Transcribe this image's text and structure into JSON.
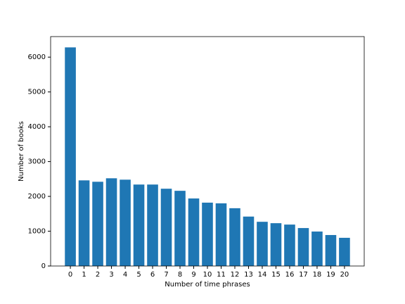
{
  "chart_data": {
    "type": "bar",
    "x": [
      0,
      1,
      2,
      3,
      4,
      5,
      6,
      7,
      8,
      9,
      10,
      11,
      12,
      13,
      14,
      15,
      16,
      17,
      18,
      19,
      20
    ],
    "values": [
      6280,
      2460,
      2420,
      2520,
      2480,
      2340,
      2340,
      2220,
      2160,
      1940,
      1820,
      1800,
      1660,
      1420,
      1270,
      1230,
      1190,
      1090,
      990,
      890,
      810
    ],
    "color": "#1f77b4",
    "xlabel": "Number of time phrases",
    "ylabel": "Number of books",
    "xlim": [
      -1.44,
      21.44
    ],
    "xticks": [
      0,
      1,
      2,
      3,
      4,
      5,
      6,
      7,
      8,
      9,
      10,
      11,
      12,
      13,
      14,
      15,
      16,
      17,
      18,
      19,
      20
    ],
    "ylim": [
      0,
      6590
    ],
    "yticks": [
      0,
      1000,
      2000,
      3000,
      4000,
      5000,
      6000
    ]
  }
}
